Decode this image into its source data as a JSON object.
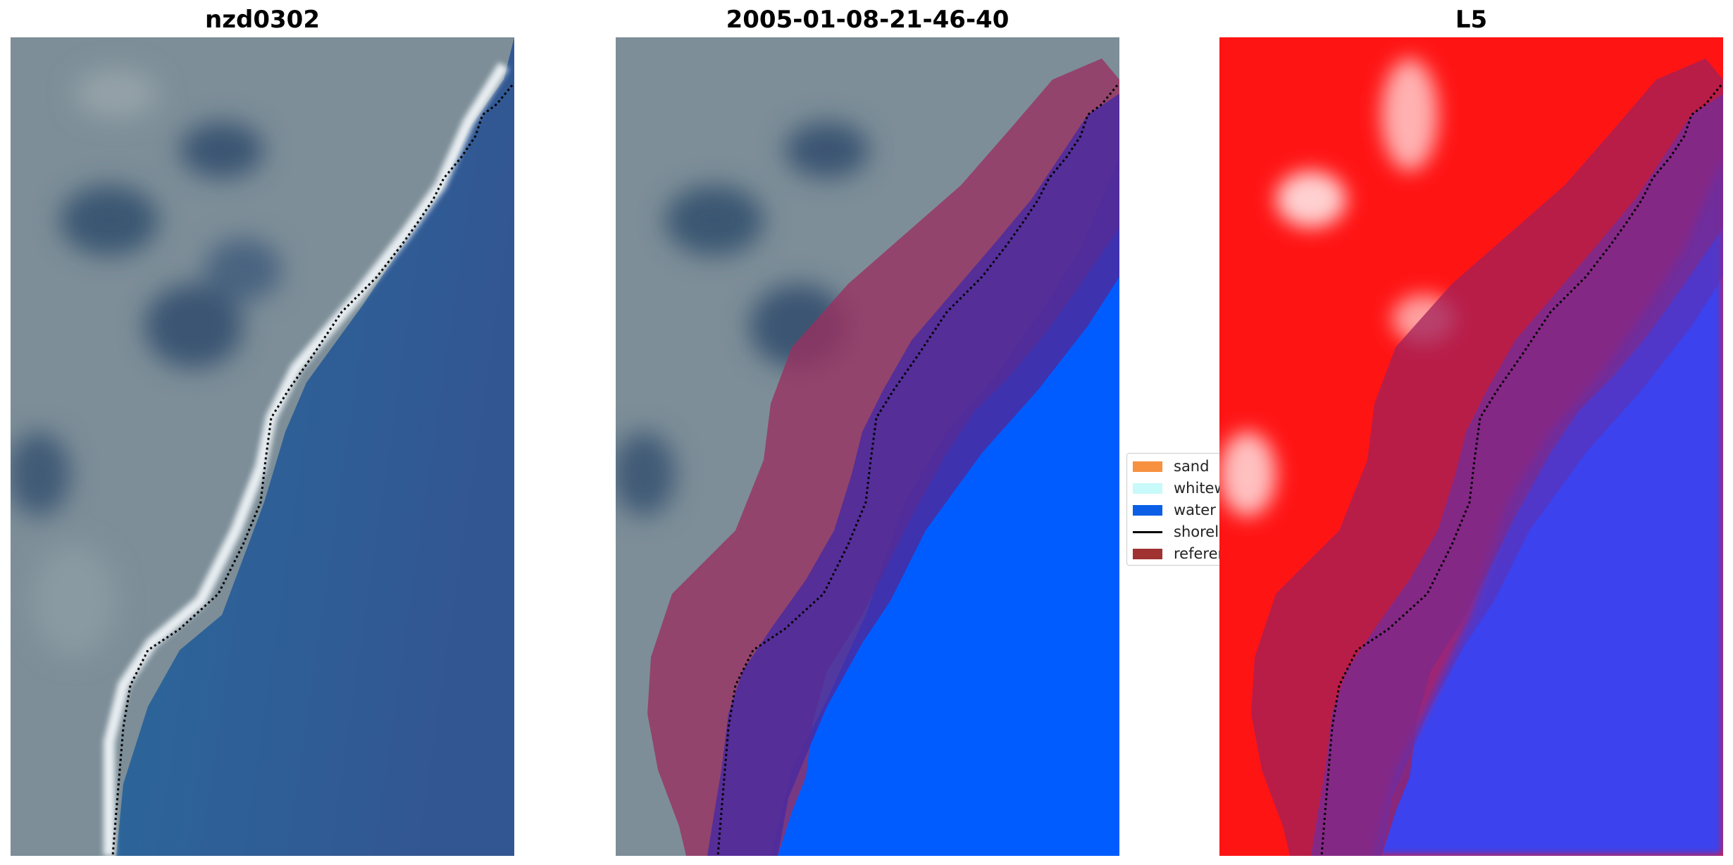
{
  "panels": [
    {
      "title": "nzd0302"
    },
    {
      "title": "2005-01-08-21-46-40"
    },
    {
      "title": "L5"
    }
  ],
  "legend": {
    "items": [
      {
        "label": "sand",
        "color": "#f7913f",
        "kind": "patch"
      },
      {
        "label": "whitewater",
        "color": "#c8fafa",
        "kind": "patch"
      },
      {
        "label": "water",
        "color": "#0a5fe6",
        "kind": "patch"
      },
      {
        "label": "shoreline",
        "color": "#000000",
        "kind": "line"
      },
      {
        "label": "reference shoreline buffer",
        "color": "#a03232",
        "kind": "patch"
      }
    ]
  },
  "colors": {
    "land": "#7f8f98",
    "ocean": "#2f5f98",
    "beach": "#e8eef2",
    "classified_water": "#005cff",
    "buffer": "#9a3060",
    "index_land": "#ff1010",
    "index_water": "#3840ee"
  }
}
